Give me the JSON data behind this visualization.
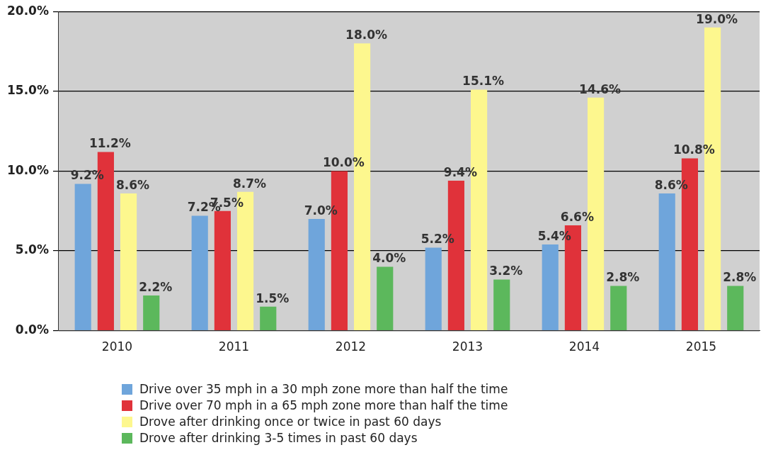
{
  "chart_data": {
    "type": "bar",
    "categories": [
      "2010",
      "2011",
      "2012",
      "2013",
      "2014",
      "2015"
    ],
    "series": [
      {
        "name": "Drive over 35 mph in a 30 mph zone more than half the time",
        "color": "#6fa5db",
        "values": [
          9.2,
          7.2,
          7.0,
          5.2,
          5.4,
          8.6
        ],
        "value_labels": [
          "9.2%",
          "7.2%",
          "7.0%",
          "5.2%",
          "5.4%",
          "8.6%"
        ]
      },
      {
        "name": "Drive over 70 mph in a 65 mph zone more than half the time",
        "color": "#e0323a",
        "values": [
          11.2,
          7.5,
          10.0,
          9.4,
          6.6,
          10.8
        ],
        "value_labels": [
          "11.2%",
          "7.5%",
          "10.0%",
          "9.4%",
          "6.6%",
          "10.8%"
        ]
      },
      {
        "name": "Drove after drinking once or twice in past 60 days",
        "color": "#fdf78e",
        "values": [
          8.6,
          8.7,
          18.0,
          15.1,
          14.6,
          19.0
        ],
        "value_labels": [
          "8.6%",
          "8.7%",
          "18.0%",
          "15.1%",
          "14.6%",
          "19.0%"
        ]
      },
      {
        "name": "Drove after drinking 3-5 times in past 60 days",
        "color": "#5cb85c",
        "values": [
          2.2,
          1.5,
          4.0,
          3.2,
          2.8,
          2.8
        ],
        "value_labels": [
          "2.2%",
          "1.5%",
          "4.0%",
          "3.2%",
          "2.8%",
          "2.8%"
        ]
      }
    ],
    "ylim": [
      0,
      20
    ],
    "yticks": [
      {
        "value": 0,
        "label": "0.0%"
      },
      {
        "value": 5,
        "label": "5.0%"
      },
      {
        "value": 10,
        "label": "10.0%"
      },
      {
        "value": 15,
        "label": "15.0%"
      },
      {
        "value": 20,
        "label": "20.0%"
      }
    ],
    "grid": "y",
    "legend": "bottom"
  }
}
